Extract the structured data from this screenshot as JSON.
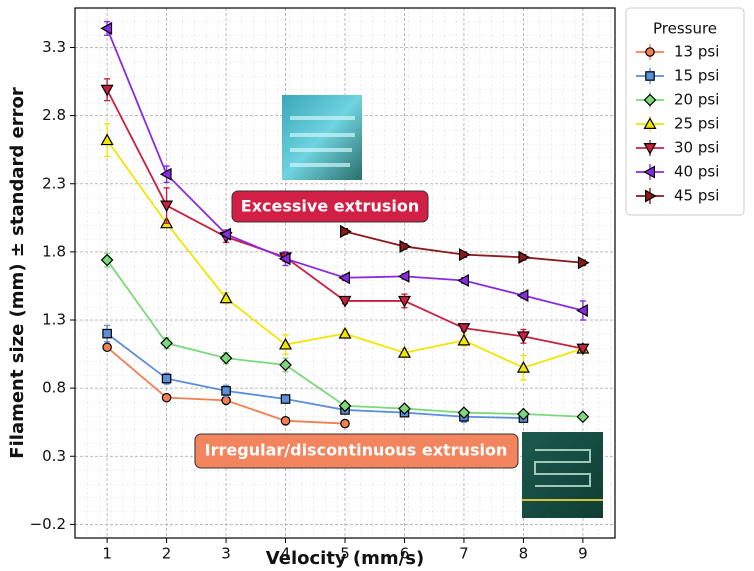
{
  "chart_data": {
    "type": "line",
    "xlabel": "Velocity (mm/s)",
    "ylabel": "Filament size (mm) ± standard error",
    "x": [
      1,
      2,
      3,
      4,
      5,
      6,
      7,
      8,
      9
    ],
    "xlim": [
      0.46,
      9.54
    ],
    "xticks": [
      1,
      2,
      3,
      4,
      5,
      6,
      7,
      8,
      9
    ],
    "ylim": [
      -0.3,
      3.59
    ],
    "yticks": [
      {
        "value": -0.2,
        "label": "−0.2"
      },
      0.3,
      0.8,
      1.3,
      1.8,
      2.3,
      2.8,
      3.3
    ],
    "grid": true,
    "legend_title": "Pressure",
    "legend_position": "outside-upper-right",
    "annotations": [
      "Excessive extrusion",
      "Irregular/discontinuous extrusion"
    ],
    "series": [
      {
        "name": "13 psi",
        "color": "#f07f52",
        "marker": "circle",
        "values": [
          1.1,
          0.73,
          0.71,
          0.56,
          0.54,
          null,
          null,
          null,
          null
        ],
        "errors": [
          0.02,
          0.02,
          0.02,
          0.02,
          0.02,
          null,
          null,
          null,
          null
        ]
      },
      {
        "name": "15 psi",
        "color": "#5b8fd8",
        "marker": "square",
        "values": [
          1.2,
          0.87,
          0.78,
          0.72,
          0.64,
          0.62,
          0.59,
          0.58,
          null
        ],
        "errors": [
          0.06,
          0.04,
          0.04,
          0.02,
          0.02,
          0.02,
          0.04,
          0.02,
          null
        ]
      },
      {
        "name": "20 psi",
        "color": "#7dd87d",
        "marker": "diamond",
        "values": [
          1.74,
          1.13,
          1.02,
          0.97,
          0.67,
          0.65,
          0.62,
          0.61,
          0.59
        ],
        "errors": [
          0.05,
          0.04,
          0.04,
          0.05,
          0.02,
          0.02,
          0.02,
          0.02,
          0.02
        ]
      },
      {
        "name": "25 psi",
        "color": "#f2e600",
        "marker": "triangle-up",
        "values": [
          2.62,
          2.01,
          1.46,
          1.12,
          1.2,
          1.06,
          1.15,
          0.95,
          1.09
        ],
        "errors": [
          0.12,
          0.03,
          0.04,
          0.07,
          0.03,
          0.03,
          0.04,
          0.09,
          0.03
        ]
      },
      {
        "name": "30 psi",
        "color": "#c8203f",
        "marker": "triangle-down",
        "values": [
          2.99,
          2.14,
          1.91,
          1.76,
          1.44,
          1.44,
          1.24,
          1.18,
          1.09
        ],
        "errors": [
          0.08,
          0.13,
          0.04,
          0.03,
          0.02,
          0.05,
          0.02,
          0.05,
          0.02
        ]
      },
      {
        "name": "40 psi",
        "color": "#8a2be2",
        "marker": "triangle-left",
        "values": [
          3.44,
          2.37,
          1.93,
          1.75,
          1.61,
          1.62,
          1.59,
          1.48,
          1.37
        ],
        "errors": [
          0.05,
          0.06,
          0.03,
          0.05,
          0.02,
          0.02,
          0.02,
          0.02,
          0.07
        ]
      },
      {
        "name": "45 psi",
        "color": "#8b1a1a",
        "marker": "triangle-right",
        "values": [
          null,
          null,
          null,
          null,
          1.95,
          1.84,
          1.78,
          1.76,
          1.72
        ],
        "errors": [
          null,
          null,
          null,
          null,
          0.02,
          0.02,
          0.02,
          0.02,
          0.02
        ]
      }
    ]
  }
}
